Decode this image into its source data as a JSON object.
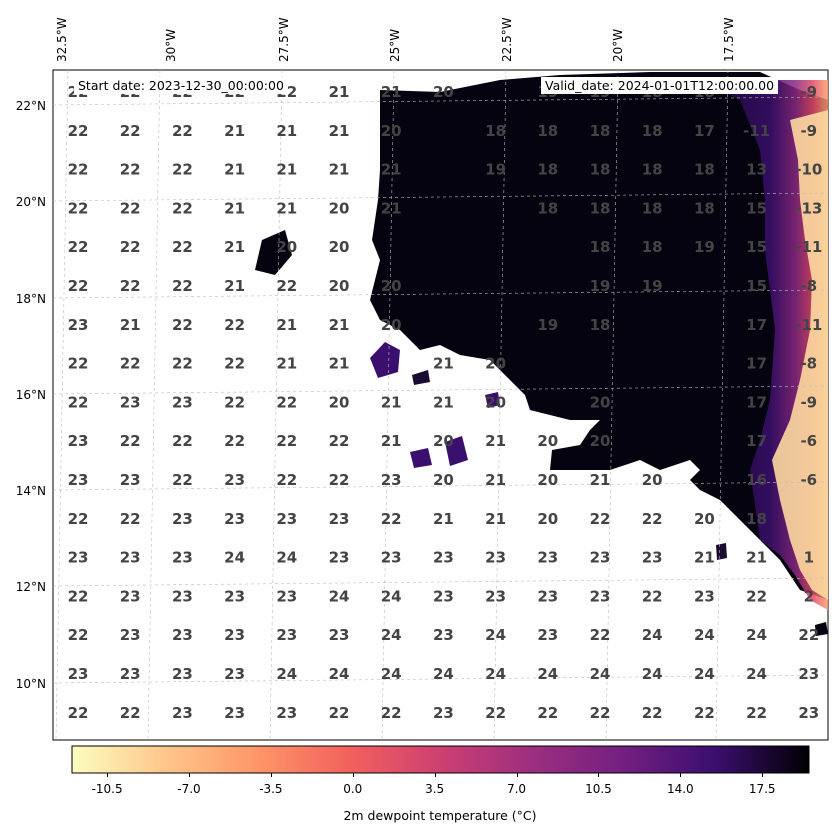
{
  "map": {
    "lon_labels": [
      "32.5°W",
      "30°W",
      "27.5°W",
      "25°W",
      "22.5°W",
      "20°W",
      "17.5°W"
    ],
    "lat_labels": [
      "22°N",
      "20°N",
      "18°N",
      "16°N",
      "14°N",
      "12°N",
      "10°N"
    ],
    "start_date_label": "Start date: 2023-12-30_00:00:00",
    "valid_date_label": "Valid_date: 2024-01-01T12:00:00.00",
    "grid_values": [
      [
        "22",
        "22",
        "22",
        "22",
        "22",
        "21",
        "21",
        "20",
        "",
        "19",
        "19",
        "18",
        "18",
        "-9"
      ],
      [
        "22",
        "22",
        "22",
        "21",
        "21",
        "21",
        "20",
        "",
        "18",
        "18",
        "18",
        "18",
        "17",
        "-11",
        "-9"
      ],
      [
        "22",
        "22",
        "22",
        "21",
        "21",
        "21",
        "21",
        "",
        "19",
        "18",
        "18",
        "18",
        "18",
        "13",
        "-10"
      ],
      [
        "22",
        "22",
        "22",
        "21",
        "21",
        "20",
        "21",
        "",
        "",
        "18",
        "18",
        "18",
        "18",
        "15",
        "-13"
      ],
      [
        "22",
        "22",
        "22",
        "21",
        "20",
        "20",
        "",
        "",
        "",
        "",
        "18",
        "18",
        "19",
        "15",
        "-11"
      ],
      [
        "22",
        "22",
        "22",
        "21",
        "22",
        "20",
        "20",
        "",
        "",
        "",
        "19",
        "19",
        "",
        "15",
        "-8"
      ],
      [
        "23",
        "21",
        "22",
        "22",
        "21",
        "21",
        "20",
        "",
        "",
        "19",
        "18",
        "",
        "",
        "17",
        "-11"
      ],
      [
        "22",
        "22",
        "22",
        "22",
        "21",
        "21",
        "",
        "21",
        "20",
        "",
        "",
        "",
        "",
        "17",
        "-8"
      ],
      [
        "22",
        "23",
        "23",
        "22",
        "22",
        "20",
        "21",
        "21",
        "20",
        "",
        "20",
        "",
        "",
        "17",
        "-9"
      ],
      [
        "23",
        "22",
        "22",
        "22",
        "22",
        "22",
        "21",
        "20",
        "21",
        "20",
        "20",
        "",
        "",
        "17",
        "-6"
      ],
      [
        "23",
        "23",
        "22",
        "23",
        "22",
        "22",
        "23",
        "20",
        "21",
        "20",
        "21",
        "20",
        "",
        "16",
        "-6"
      ],
      [
        "22",
        "22",
        "23",
        "23",
        "23",
        "23",
        "22",
        "21",
        "21",
        "20",
        "22",
        "22",
        "20",
        "18",
        ""
      ],
      [
        "23",
        "23",
        "23",
        "24",
        "24",
        "23",
        "23",
        "23",
        "23",
        "23",
        "23",
        "23",
        "21",
        "21",
        "1"
      ],
      [
        "22",
        "23",
        "23",
        "23",
        "23",
        "24",
        "24",
        "23",
        "23",
        "23",
        "23",
        "22",
        "23",
        "22",
        "2"
      ],
      [
        "22",
        "23",
        "23",
        "23",
        "23",
        "23",
        "24",
        "23",
        "24",
        "23",
        "22",
        "24",
        "24",
        "24",
        "22"
      ],
      [
        "23",
        "23",
        "23",
        "23",
        "24",
        "24",
        "24",
        "24",
        "24",
        "24",
        "24",
        "24",
        "24",
        "24",
        "23"
      ],
      [
        "22",
        "22",
        "23",
        "23",
        "23",
        "22",
        "22",
        "23",
        "22",
        "22",
        "22",
        "22",
        "22",
        "22",
        "23"
      ]
    ],
    "land_colors": {
      "darkest": "#05030f",
      "dark": "#1a0b33",
      "mid_purple": "#3b0f6e",
      "magenta": "#8c2981",
      "pink": "#de4968",
      "orange": "#fe9f6d",
      "pale": "#fcfdbf"
    }
  },
  "colorbar": {
    "label": "2m dewpoint temperature ($^\\circ$C)",
    "label_display": "2m dewpoint temperature (°C)",
    "ticks": [
      "-10.5",
      "-7.0",
      "-3.5",
      "0.0",
      "3.5",
      "7.0",
      "10.5",
      "14.0",
      "17.5"
    ],
    "range": [
      -12.0,
      19.5
    ],
    "colormap": "magma_r"
  }
}
